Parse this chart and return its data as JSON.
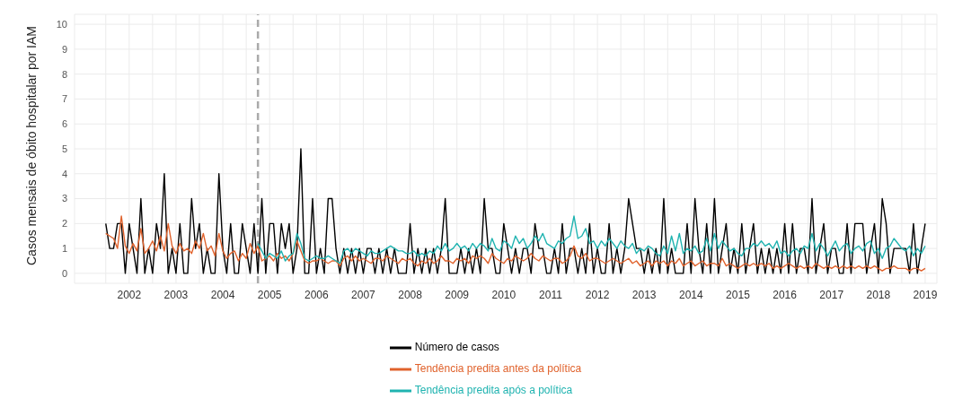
{
  "chart_data": {
    "type": "line",
    "ylabel": "Casos mensais de óbito hospitalar por IAM",
    "x": [
      "2002-01",
      "2002-02",
      "2002-03",
      "2002-04",
      "2002-05",
      "2002-06",
      "2002-07",
      "2002-08",
      "2002-09",
      "2002-10",
      "2002-11",
      "2002-12",
      "2003-01",
      "2003-02",
      "2003-03",
      "2003-04",
      "2003-05",
      "2003-06",
      "2003-07",
      "2003-08",
      "2003-09",
      "2003-10",
      "2003-11",
      "2003-12",
      "2004-01",
      "2004-02",
      "2004-03",
      "2004-04",
      "2004-05",
      "2004-06",
      "2004-07",
      "2004-08",
      "2004-09",
      "2004-10",
      "2004-11",
      "2004-12",
      "2005-01",
      "2005-02",
      "2005-03",
      "2005-04",
      "2005-05",
      "2005-06",
      "2005-07",
      "2005-08",
      "2005-09",
      "2005-10",
      "2005-11",
      "2005-12",
      "2006-01",
      "2006-02",
      "2006-03",
      "2006-04",
      "2006-05",
      "2006-06",
      "2006-07",
      "2006-08",
      "2006-09",
      "2006-10",
      "2006-11",
      "2006-12",
      "2007-01",
      "2007-02",
      "2007-03",
      "2007-04",
      "2007-05",
      "2007-06",
      "2007-07",
      "2007-08",
      "2007-09",
      "2007-10",
      "2007-11",
      "2007-12",
      "2008-01",
      "2008-02",
      "2008-03",
      "2008-04",
      "2008-05",
      "2008-06",
      "2008-07",
      "2008-08",
      "2008-09",
      "2008-10",
      "2008-11",
      "2008-12",
      "2009-01",
      "2009-02",
      "2009-03",
      "2009-04",
      "2009-05",
      "2009-06",
      "2009-07",
      "2009-08",
      "2009-09",
      "2009-10",
      "2009-11",
      "2009-12",
      "2010-01",
      "2010-02",
      "2010-03",
      "2010-04",
      "2010-05",
      "2010-06",
      "2010-07",
      "2010-08",
      "2010-09",
      "2010-10",
      "2010-11",
      "2010-12",
      "2011-01",
      "2011-02",
      "2011-03",
      "2011-04",
      "2011-05",
      "2011-06",
      "2011-07",
      "2011-08",
      "2011-09",
      "2011-10",
      "2011-11",
      "2011-12",
      "2012-01",
      "2012-02",
      "2012-03",
      "2012-04",
      "2012-05",
      "2012-06",
      "2012-07",
      "2012-08",
      "2012-09",
      "2012-10",
      "2012-11",
      "2012-12",
      "2013-01",
      "2013-02",
      "2013-03",
      "2013-04",
      "2013-05",
      "2013-06",
      "2013-07",
      "2013-08",
      "2013-09",
      "2013-10",
      "2013-11",
      "2013-12",
      "2014-01",
      "2014-02",
      "2014-03",
      "2014-04",
      "2014-05",
      "2014-06",
      "2014-07",
      "2014-08",
      "2014-09",
      "2014-10",
      "2014-11",
      "2014-12",
      "2015-01",
      "2015-02",
      "2015-03",
      "2015-04",
      "2015-05",
      "2015-06",
      "2015-07",
      "2015-08",
      "2015-09",
      "2015-10",
      "2015-11",
      "2015-12",
      "2016-01",
      "2016-02",
      "2016-03",
      "2016-04",
      "2016-05",
      "2016-06",
      "2016-07",
      "2016-08",
      "2016-09",
      "2016-10",
      "2016-11",
      "2016-12",
      "2017-01",
      "2017-02",
      "2017-03",
      "2017-04",
      "2017-05",
      "2017-06",
      "2017-07",
      "2017-08",
      "2017-09",
      "2017-10",
      "2017-11",
      "2017-12",
      "2018-01",
      "2018-02",
      "2018-03",
      "2018-04",
      "2018-05",
      "2018-06",
      "2018-07",
      "2018-08",
      "2018-09",
      "2018-10",
      "2018-11",
      "2018-12",
      "2019-01",
      "2019-02",
      "2019-03",
      "2019-04",
      "2019-05",
      "2019-06",
      "2019-07"
    ],
    "series": [
      {
        "name": "Número de casos",
        "color": "#000000",
        "values": [
          2,
          1,
          1,
          2,
          2,
          0,
          2,
          1,
          0,
          3,
          0,
          1,
          0,
          2,
          1,
          4,
          0,
          1,
          0,
          2,
          0,
          0,
          3,
          1,
          2,
          0,
          1,
          0,
          0,
          4,
          1,
          0,
          2,
          0,
          0,
          2,
          1,
          0,
          2,
          0,
          3,
          0,
          2,
          2,
          0,
          2,
          1,
          2,
          0,
          1,
          5,
          0,
          0,
          3,
          0,
          1,
          0,
          3,
          3,
          1,
          0,
          1,
          0,
          1,
          0,
          1,
          0,
          1,
          1,
          0,
          1,
          0,
          1,
          0,
          1,
          0,
          0,
          0,
          2,
          0,
          1,
          0,
          1,
          0,
          1,
          0,
          1,
          3,
          0,
          0,
          0,
          1,
          0,
          1,
          0,
          1,
          0,
          3,
          1,
          1,
          0,
          0,
          2,
          1,
          0,
          1,
          0,
          1,
          1,
          0,
          2,
          1,
          1,
          0,
          0,
          1,
          0,
          2,
          0,
          1,
          1,
          0,
          1,
          0,
          2,
          0,
          1,
          0,
          0,
          2,
          0,
          1,
          0,
          1,
          3,
          2,
          1,
          1,
          0,
          1,
          0,
          1,
          0,
          3,
          0,
          1,
          0,
          0,
          0,
          2,
          0,
          3,
          1,
          0,
          2,
          0,
          3,
          0,
          1,
          2,
          0,
          1,
          0,
          2,
          0,
          1,
          2,
          0,
          1,
          0,
          1,
          0,
          1,
          0,
          2,
          0,
          2,
          0,
          1,
          1,
          0,
          3,
          0,
          1,
          2,
          0,
          1,
          1,
          0,
          0,
          2,
          0,
          2,
          2,
          2,
          0,
          1,
          2,
          0,
          3,
          2,
          0,
          1,
          1,
          1,
          1,
          0,
          2,
          0,
          1,
          2
        ]
      },
      {
        "name": "Tendência predita antes da política",
        "color": "#e0622c",
        "values": [
          1.6,
          1.5,
          1.4,
          1.0,
          2.3,
          1.1,
          0.8,
          1.2,
          0.9,
          1.8,
          0.8,
          1.0,
          1.3,
          0.9,
          1.5,
          0.9,
          2.0,
          1.1,
          0.8,
          1.2,
          0.9,
          1.0,
          0.8,
          1.3,
          1.0,
          1.6,
          0.9,
          1.1,
          0.7,
          1.6,
          0.9,
          0.6,
          0.8,
          0.9,
          0.5,
          0.8,
          0.6,
          1.2,
          0.8,
          1.1,
          0.5,
          0.6,
          0.7,
          0.5,
          0.8,
          0.6,
          0.7,
          0.5,
          0.8,
          1.3,
          0.9,
          0.5,
          0.4,
          0.5,
          0.5,
          0.6,
          0.5,
          0.4,
          0.5,
          0.5,
          0.3,
          0.6,
          0.7,
          0.5,
          0.7,
          0.5,
          0.6,
          0.5,
          0.4,
          0.6,
          0.6,
          0.5,
          0.7,
          0.6,
          0.5,
          0.4,
          0.6,
          0.5,
          0.6,
          0.4,
          0.3,
          0.5,
          0.4,
          0.6,
          0.4,
          0.5,
          0.7,
          0.5,
          0.5,
          0.4,
          0.6,
          0.5,
          0.6,
          0.4,
          0.7,
          0.6,
          0.7,
          0.6,
          0.4,
          0.8,
          0.6,
          0.5,
          0.4,
          0.6,
          0.5,
          0.7,
          0.6,
          0.5,
          0.6,
          0.8,
          0.6,
          0.5,
          0.7,
          0.6,
          0.5,
          0.6,
          0.6,
          0.4,
          0.5,
          0.7,
          1.1,
          0.7,
          0.6,
          0.8,
          0.5,
          0.6,
          0.6,
          0.5,
          0.4,
          0.5,
          0.6,
          0.5,
          0.4,
          0.5,
          0.6,
          0.4,
          0.5,
          0.3,
          0.4,
          0.5,
          0.3,
          0.5,
          0.4,
          0.5,
          0.3,
          0.5,
          0.4,
          0.6,
          0.3,
          0.4,
          0.5,
          0.3,
          0.4,
          0.5,
          0.3,
          0.4,
          0.4,
          0.3,
          0.6,
          0.3,
          0.4,
          0.3,
          0.2,
          0.3,
          0.4,
          0.3,
          0.4,
          0.3,
          0.4,
          0.3,
          0.4,
          0.2,
          0.3,
          0.2,
          0.3,
          0.4,
          0.3,
          0.2,
          0.3,
          0.2,
          0.3,
          0.2,
          0.4,
          0.3,
          0.2,
          0.3,
          0.2,
          0.3,
          0.2,
          0.3,
          0.2,
          0.3,
          0.2,
          0.3,
          0.2,
          0.3,
          0.2,
          0.3,
          0.2,
          0.1,
          0.2,
          0.2,
          0.3,
          0.2,
          0.2,
          0.2,
          0.1,
          0.2,
          0.2,
          0.1,
          0.2
        ]
      },
      {
        "name": "Tendência predita após a política",
        "color": "#1fb3b0",
        "values": [
          null,
          null,
          null,
          null,
          null,
          null,
          null,
          null,
          null,
          null,
          null,
          null,
          null,
          null,
          null,
          null,
          null,
          null,
          null,
          null,
          null,
          null,
          null,
          null,
          null,
          null,
          null,
          null,
          null,
          null,
          null,
          null,
          null,
          null,
          null,
          null,
          null,
          null,
          null,
          1.2,
          0.9,
          0.6,
          0.8,
          0.7,
          0.6,
          0.9,
          0.5,
          0.7,
          0.8,
          1.6,
          1.2,
          0.6,
          0.5,
          0.6,
          0.7,
          0.6,
          0.6,
          0.7,
          0.6,
          0.5,
          0.4,
          0.9,
          1.0,
          0.8,
          1.0,
          0.9,
          0.8,
          0.7,
          0.9,
          0.8,
          0.8,
          0.9,
          1.0,
          1.1,
          1.0,
          0.9,
          0.9,
          0.8,
          0.8,
          0.9,
          0.7,
          0.8,
          0.7,
          0.9,
          0.8,
          1.1,
          0.9,
          1.2,
          0.9,
          1.0,
          1.2,
          1.0,
          1.1,
          0.9,
          1.2,
          1.0,
          1.2,
          1.1,
          0.9,
          1.4,
          1.0,
          0.9,
          1.3,
          1.2,
          1.0,
          1.5,
          1.2,
          1.4,
          1.0,
          1.2,
          1.5,
          1.3,
          1.6,
          1.2,
          1.1,
          1.0,
          1.3,
          1.2,
          1.4,
          1.5,
          2.3,
          1.4,
          1.5,
          1.8,
          1.2,
          1.3,
          1.0,
          1.3,
          1.1,
          1.4,
          1.2,
          1.0,
          1.3,
          1.1,
          1.0,
          1.2,
          0.8,
          1.0,
          0.9,
          1.1,
          1.0,
          0.8,
          0.7,
          1.1,
          0.8,
          1.5,
          0.9,
          1.6,
          0.8,
          1.0,
          0.9,
          1.1,
          0.8,
          0.9,
          1.4,
          0.9,
          1.6,
          1.0,
          1.3,
          1.1,
          0.9,
          1.0,
          0.8,
          0.7,
          1.0,
          1.0,
          1.2,
          1.1,
          1.3,
          1.1,
          1.2,
          1.0,
          1.3,
          0.8,
          0.9,
          0.7,
          0.9,
          1.0,
          0.8,
          1.1,
          1.0,
          1.6,
          0.9,
          1.2,
          1.0,
          0.7,
          1.0,
          1.3,
          0.9,
          1.1,
          1.2,
          0.8,
          1.0,
          1.1,
          0.9,
          1.2,
          1.3,
          0.8,
          1.0,
          0.6,
          1.0,
          1.1,
          1.4,
          1.2,
          1.0,
          0.9,
          1.1,
          0.7,
          1.0,
          0.8,
          1.1
        ]
      }
    ],
    "xlim": [
      "2001-05",
      "2019-10"
    ],
    "xticks": [
      {
        "value": "2002-01",
        "label": null
      },
      {
        "value": "2002-07",
        "label": "2002"
      },
      {
        "value": "2003-01",
        "label": null
      },
      {
        "value": "2003-07",
        "label": "2003"
      },
      {
        "value": "2004-01",
        "label": null
      },
      {
        "value": "2004-07",
        "label": "2004"
      },
      {
        "value": "2005-01",
        "label": null
      },
      {
        "value": "2005-07",
        "label": "2005"
      },
      {
        "value": "2006-01",
        "label": null
      },
      {
        "value": "2006-07",
        "label": "2006"
      },
      {
        "value": "2007-01",
        "label": null
      },
      {
        "value": "2007-07",
        "label": "2007"
      },
      {
        "value": "2008-01",
        "label": null
      },
      {
        "value": "2008-07",
        "label": "2008"
      },
      {
        "value": "2009-01",
        "label": null
      },
      {
        "value": "2009-07",
        "label": "2009"
      },
      {
        "value": "2010-01",
        "label": null
      },
      {
        "value": "2010-07",
        "label": "2010"
      },
      {
        "value": "2011-01",
        "label": null
      },
      {
        "value": "2011-07",
        "label": "2011"
      },
      {
        "value": "2012-01",
        "label": null
      },
      {
        "value": "2012-07",
        "label": "2012"
      },
      {
        "value": "2013-01",
        "label": null
      },
      {
        "value": "2013-07",
        "label": "2013"
      },
      {
        "value": "2014-01",
        "label": null
      },
      {
        "value": "2014-07",
        "label": "2014"
      },
      {
        "value": "2015-01",
        "label": null
      },
      {
        "value": "2015-07",
        "label": "2015"
      },
      {
        "value": "2016-01",
        "label": null
      },
      {
        "value": "2016-07",
        "label": "2016"
      },
      {
        "value": "2017-01",
        "label": null
      },
      {
        "value": "2017-07",
        "label": "2017"
      },
      {
        "value": "2018-01",
        "label": null
      },
      {
        "value": "2018-07",
        "label": "2018"
      },
      {
        "value": "2019-01",
        "label": null
      },
      {
        "value": "2019-07",
        "label": "2019"
      }
    ],
    "ylim": [
      -0.4,
      10.4
    ],
    "yticks": [
      0,
      1,
      2,
      3,
      4,
      5,
      6,
      7,
      8,
      9,
      10
    ],
    "ref_lines": [
      {
        "axis": "x",
        "value": "2005-04",
        "color": "#aaaaaa",
        "line_style": "dashed"
      }
    ],
    "grid": true,
    "legend": "bottom",
    "marker": "none",
    "line_style": "solid"
  }
}
